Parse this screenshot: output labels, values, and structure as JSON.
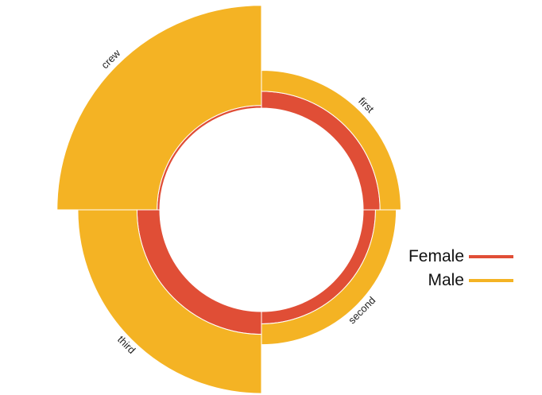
{
  "chart_data": {
    "type": "radial-stacked-bar",
    "categories": [
      "first",
      "second",
      "third",
      "crew"
    ],
    "series": [
      {
        "name": "Female",
        "color": "#E04E36",
        "values": [
          145,
          106,
          196,
          23
        ]
      },
      {
        "name": "Male",
        "color": "#F4B324",
        "values": [
          180,
          179,
          510,
          862
        ]
      }
    ],
    "legend_position": "right",
    "grid": false
  }
}
